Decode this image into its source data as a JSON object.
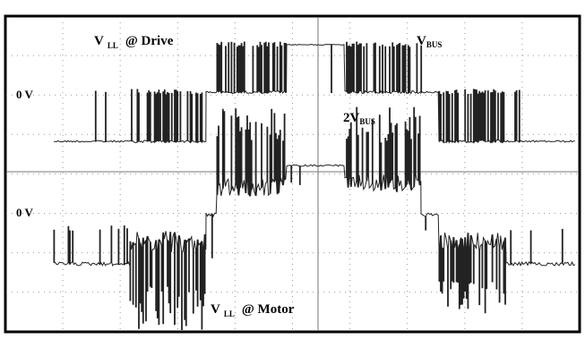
{
  "labels": {
    "drive": {
      "main": "V",
      "sub": "LL",
      "rest": "@ Drive"
    },
    "bus": {
      "main": "V",
      "sub": "BUS"
    },
    "zero_top": "0 V",
    "two_bus": {
      "main": "2V",
      "sub": "BUS"
    },
    "zero_bottom": "0 V",
    "motor": {
      "main": "V",
      "sub": "LL",
      "rest": "@ Motor"
    }
  }
}
